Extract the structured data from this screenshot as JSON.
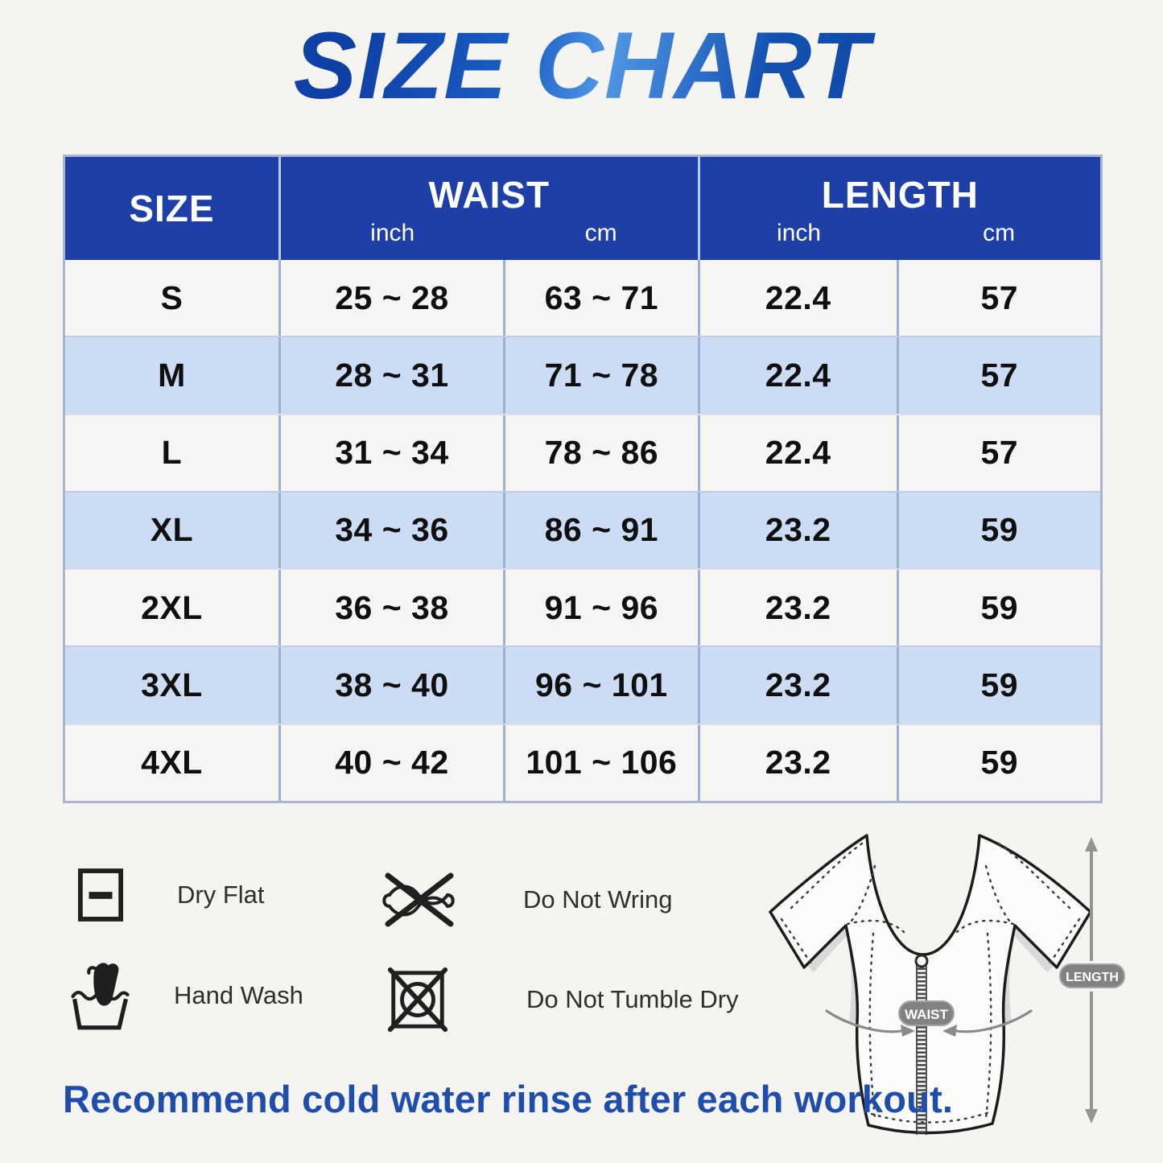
{
  "title": "SIZE CHART",
  "table": {
    "headers": {
      "size": "SIZE",
      "waist": "WAIST",
      "length": "LENGTH",
      "unit_inch": "inch",
      "unit_cm": "cm"
    },
    "rows": [
      {
        "size": "S",
        "waist_inch": "25 ~ 28",
        "waist_cm": "63 ~ 71",
        "length_inch": "22.4",
        "length_cm": "57"
      },
      {
        "size": "M",
        "waist_inch": "28 ~ 31",
        "waist_cm": "71 ~ 78",
        "length_inch": "22.4",
        "length_cm": "57"
      },
      {
        "size": "L",
        "waist_inch": "31 ~ 34",
        "waist_cm": "78 ~ 86",
        "length_inch": "22.4",
        "length_cm": "57"
      },
      {
        "size": "XL",
        "waist_inch": "34 ~ 36",
        "waist_cm": "86 ~ 91",
        "length_inch": "23.2",
        "length_cm": "59"
      },
      {
        "size": "2XL",
        "waist_inch": "36 ~ 38",
        "waist_cm": "91 ~ 96",
        "length_inch": "23.2",
        "length_cm": "59"
      },
      {
        "size": "3XL",
        "waist_inch": "38 ~ 40",
        "waist_cm": "96 ~ 101",
        "length_inch": "23.2",
        "length_cm": "59"
      },
      {
        "size": "4XL",
        "waist_inch": "40 ~ 42",
        "waist_cm": "101 ~ 106",
        "length_inch": "23.2",
        "length_cm": "59"
      }
    ]
  },
  "care_instructions": [
    {
      "icon": "dry-flat-icon",
      "label": "Dry Flat"
    },
    {
      "icon": "do-not-wring-icon",
      "label": "Do Not Wring"
    },
    {
      "icon": "hand-wash-icon",
      "label": "Hand Wash"
    },
    {
      "icon": "do-not-tumble-dry-icon",
      "label": "Do Not Tumble Dry"
    }
  ],
  "garment_labels": {
    "waist": "WAIST",
    "length": "LENGTH"
  },
  "footer_note": "Recommend cold water rinse after each workout.",
  "colors": {
    "title_blue": "#1250b0",
    "header_bg": "#1e3ea8",
    "row_alt_blue": "#cddcf5",
    "row_plain": "#f6f5f3",
    "table_border": "#a9b6cf",
    "cell_divider": "#9cb0d2",
    "footer_blue": "#1f4dab",
    "badge_gray": "#828282",
    "background": "#f5f4f1"
  },
  "chart_data": {
    "type": "table",
    "title": "SIZE CHART",
    "columns": [
      "SIZE",
      "WAIST (inch)",
      "WAIST (cm)",
      "LENGTH (inch)",
      "LENGTH (cm)"
    ],
    "rows": [
      [
        "S",
        "25 ~ 28",
        "63 ~ 71",
        "22.4",
        "57"
      ],
      [
        "M",
        "28 ~ 31",
        "71 ~ 78",
        "22.4",
        "57"
      ],
      [
        "L",
        "31 ~ 34",
        "78 ~ 86",
        "22.4",
        "57"
      ],
      [
        "XL",
        "34 ~ 36",
        "86 ~ 91",
        "23.2",
        "59"
      ],
      [
        "2XL",
        "36 ~ 38",
        "91 ~ 96",
        "23.2",
        "59"
      ],
      [
        "3XL",
        "38 ~ 40",
        "96 ~ 101",
        "23.2",
        "59"
      ],
      [
        "4XL",
        "40 ~ 42",
        "101 ~ 106",
        "23.2",
        "59"
      ]
    ]
  }
}
